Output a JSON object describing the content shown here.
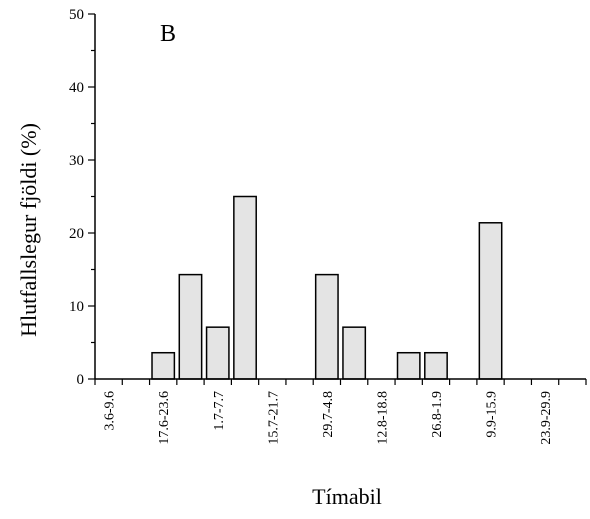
{
  "chart_data": {
    "type": "bar",
    "panel_label": "B",
    "xlabel": "Tímabil",
    "ylabel": "Hlutfallslegur fjöldi (%)",
    "ylim": [
      0,
      50
    ],
    "yticks": [
      0,
      10,
      20,
      30,
      40,
      50
    ],
    "categories": [
      "3.6-9.6",
      "",
      "17.6-23.6",
      "",
      "1.7-7.7",
      "",
      "15.7-21.7",
      "",
      "29.7-4.8",
      "",
      "12.8-18.8",
      "",
      "26.8-1.9",
      "",
      "9.9-15.9",
      "",
      "23.9-29.9",
      ""
    ],
    "values": [
      0,
      0,
      3.6,
      14.3,
      7.1,
      25.0,
      0,
      0,
      14.3,
      7.1,
      0,
      3.6,
      3.6,
      0,
      21.4,
      0,
      0,
      0
    ],
    "grid": false,
    "bar_fill": "#e4e4e4",
    "bar_stroke": "#000000"
  }
}
